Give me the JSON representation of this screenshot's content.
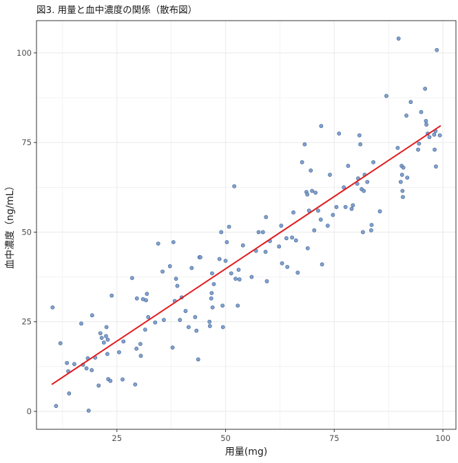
{
  "chart_data": {
    "type": "scatter",
    "title": "図3. 用量と血中濃度の関係（散布図）",
    "xlabel": "用量(mg)",
    "ylabel": "血中濃度（ng/mL）",
    "xlim": [
      6.5,
      103
    ],
    "ylim": [
      -5,
      109
    ],
    "x_ticks": [
      25,
      50,
      75,
      100
    ],
    "y_ticks": [
      0,
      25,
      50,
      75,
      100
    ],
    "grid": true,
    "legend": "none",
    "colors": {
      "points": "#7b9ccc",
      "point_stroke": "#3a5e8c",
      "fit_line": "#e31a1c",
      "grid": "#ebebeb",
      "panel_border": "#333333"
    },
    "points": [
      [
        10.2,
        29.0
      ],
      [
        11.0,
        1.5
      ],
      [
        12.0,
        19.0
      ],
      [
        13.5,
        13.5
      ],
      [
        13.8,
        11.2
      ],
      [
        14.0,
        5.0
      ],
      [
        15.2,
        13.2
      ],
      [
        16.8,
        24.5
      ],
      [
        17.2,
        13.0
      ],
      [
        18.0,
        12.0
      ],
      [
        18.3,
        14.8
      ],
      [
        18.5,
        0.2
      ],
      [
        19.2,
        11.5
      ],
      [
        19.3,
        26.8
      ],
      [
        20.0,
        15.0
      ],
      [
        20.8,
        7.2
      ],
      [
        21.2,
        21.8
      ],
      [
        21.5,
        20.5
      ],
      [
        22.0,
        19.2
      ],
      [
        22.5,
        21.0
      ],
      [
        22.6,
        23.5
      ],
      [
        22.8,
        16.0
      ],
      [
        22.9,
        20.0
      ],
      [
        23.0,
        9.0
      ],
      [
        23.5,
        8.5
      ],
      [
        23.8,
        32.3
      ],
      [
        25.5,
        16.5
      ],
      [
        26.3,
        8.9
      ],
      [
        26.5,
        19.5
      ],
      [
        28.5,
        37.2
      ],
      [
        29.2,
        7.5
      ],
      [
        29.5,
        17.5
      ],
      [
        29.6,
        31.5
      ],
      [
        30.4,
        18.8
      ],
      [
        30.5,
        15.5
      ],
      [
        31.0,
        31.3
      ],
      [
        31.5,
        22.8
      ],
      [
        31.7,
        31.0
      ],
      [
        31.9,
        32.8
      ],
      [
        32.2,
        26.3
      ],
      [
        33.8,
        24.8
      ],
      [
        34.5,
        46.8
      ],
      [
        35.5,
        39.0
      ],
      [
        35.8,
        25.5
      ],
      [
        37.2,
        40.5
      ],
      [
        37.8,
        17.8
      ],
      [
        38.0,
        47.2
      ],
      [
        38.3,
        30.8
      ],
      [
        38.6,
        37.0
      ],
      [
        38.9,
        35.0
      ],
      [
        39.5,
        25.5
      ],
      [
        39.9,
        31.8
      ],
      [
        40.8,
        28.0
      ],
      [
        41.5,
        23.5
      ],
      [
        42.2,
        40.0
      ],
      [
        43.0,
        26.3
      ],
      [
        43.3,
        22.5
      ],
      [
        43.7,
        14.5
      ],
      [
        44.0,
        43.0
      ],
      [
        44.2,
        43.0
      ],
      [
        46.3,
        25.0
      ],
      [
        46.4,
        23.8
      ],
      [
        46.7,
        31.5
      ],
      [
        46.8,
        33.0
      ],
      [
        46.9,
        38.5
      ],
      [
        47.0,
        29.0
      ],
      [
        47.3,
        35.5
      ],
      [
        48.6,
        42.5
      ],
      [
        49.0,
        50.0
      ],
      [
        49.3,
        29.5
      ],
      [
        49.4,
        23.5
      ],
      [
        50.0,
        42.0
      ],
      [
        50.3,
        47.2
      ],
      [
        50.8,
        51.5
      ],
      [
        51.3,
        38.5
      ],
      [
        52.0,
        62.8
      ],
      [
        52.3,
        37.0
      ],
      [
        52.8,
        29.5
      ],
      [
        53.0,
        39.5
      ],
      [
        53.2,
        36.8
      ],
      [
        54.0,
        46.3
      ],
      [
        56.0,
        37.5
      ],
      [
        57.0,
        44.8
      ],
      [
        57.6,
        50.0
      ],
      [
        58.6,
        50.0
      ],
      [
        59.2,
        44.5
      ],
      [
        59.3,
        54.2
      ],
      [
        59.5,
        36.3
      ],
      [
        60.2,
        47.5
      ],
      [
        62.3,
        46.0
      ],
      [
        62.8,
        51.8
      ],
      [
        63.0,
        41.3
      ],
      [
        64.0,
        48.3
      ],
      [
        64.2,
        40.3
      ],
      [
        65.3,
        48.5
      ],
      [
        65.6,
        55.5
      ],
      [
        66.2,
        47.7
      ],
      [
        66.6,
        38.7
      ],
      [
        67.6,
        69.5
      ],
      [
        68.2,
        74.5
      ],
      [
        68.6,
        61.2
      ],
      [
        68.8,
        60.5
      ],
      [
        68.9,
        45.5
      ],
      [
        69.2,
        56.0
      ],
      [
        69.6,
        67.2
      ],
      [
        69.9,
        61.5
      ],
      [
        70.4,
        50.5
      ],
      [
        70.7,
        61.0
      ],
      [
        71.3,
        56.0
      ],
      [
        71.9,
        53.5
      ],
      [
        72.0,
        79.6
      ],
      [
        72.2,
        41.0
      ],
      [
        73.5,
        51.8
      ],
      [
        74.0,
        66.0
      ],
      [
        74.7,
        54.8
      ],
      [
        75.5,
        57.0
      ],
      [
        76.1,
        77.5
      ],
      [
        77.2,
        62.5
      ],
      [
        77.6,
        57.0
      ],
      [
        78.2,
        68.5
      ],
      [
        79.0,
        56.5
      ],
      [
        79.3,
        57.5
      ],
      [
        80.3,
        63.5
      ],
      [
        80.5,
        65.0
      ],
      [
        80.8,
        77.0
      ],
      [
        81.0,
        74.5
      ],
      [
        81.3,
        62.0
      ],
      [
        81.6,
        50.0
      ],
      [
        81.8,
        61.5
      ],
      [
        82.0,
        66.0
      ],
      [
        82.6,
        64.0
      ],
      [
        83.5,
        50.5
      ],
      [
        83.6,
        52.0
      ],
      [
        84.0,
        69.5
      ],
      [
        85.5,
        55.8
      ],
      [
        87.0,
        88.0
      ],
      [
        89.6,
        73.5
      ],
      [
        89.8,
        104.0
      ],
      [
        90.3,
        64.0
      ],
      [
        90.5,
        68.5
      ],
      [
        90.6,
        66.0
      ],
      [
        90.7,
        61.5
      ],
      [
        90.8,
        59.8
      ],
      [
        90.9,
        68.0
      ],
      [
        91.6,
        82.5
      ],
      [
        91.8,
        65.2
      ],
      [
        92.6,
        86.3
      ],
      [
        94.3,
        73.0
      ],
      [
        94.5,
        74.7
      ],
      [
        95.0,
        83.5
      ],
      [
        95.9,
        90.0
      ],
      [
        96.1,
        81.0
      ],
      [
        96.2,
        80.0
      ],
      [
        96.5,
        77.5
      ],
      [
        96.9,
        76.5
      ],
      [
        98.1,
        73.0
      ],
      [
        98.3,
        78.2
      ],
      [
        98.4,
        68.3
      ],
      [
        98.6,
        100.8
      ],
      [
        99.3,
        77.0
      ],
      [
        98.0,
        77.2
      ]
    ],
    "fit_line": {
      "x": [
        10,
        99.5
      ],
      "y": [
        7.5,
        79.7
      ]
    }
  }
}
